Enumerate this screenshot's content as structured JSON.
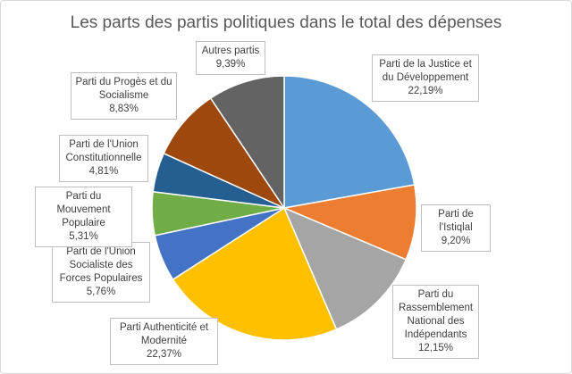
{
  "chart_data": {
    "type": "pie",
    "title": "Les parts des partis politiques dans le total des dépenses",
    "categories": [
      "Parti de la Justice et du Développement",
      "Parti de l'Istiqlal",
      "Parti du Rassemblement National des Indépendants",
      "Parti Authenticité et Modernité",
      "Parti de l'Union Socialiste des Forces Populaires",
      "Parti du Mouvement Populaire",
      "Parti de l'Union Constitutionnelle",
      "Parti du Progès et du Socialisme",
      "Autres partis"
    ],
    "values": [
      22.19,
      9.2,
      12.15,
      22.37,
      5.76,
      5.31,
      4.81,
      8.83,
      9.39
    ],
    "value_labels": [
      "22,19%",
      "9,20%",
      "12,15%",
      "22,37%",
      "5,76%",
      "5,31%",
      "4,81%",
      "8,83%",
      "9,39%"
    ],
    "colors": [
      "#5b9bd5",
      "#ed7d31",
      "#a5a5a5",
      "#ffc000",
      "#4472c4",
      "#70ad47",
      "#255e91",
      "#9e480e",
      "#636363"
    ]
  }
}
